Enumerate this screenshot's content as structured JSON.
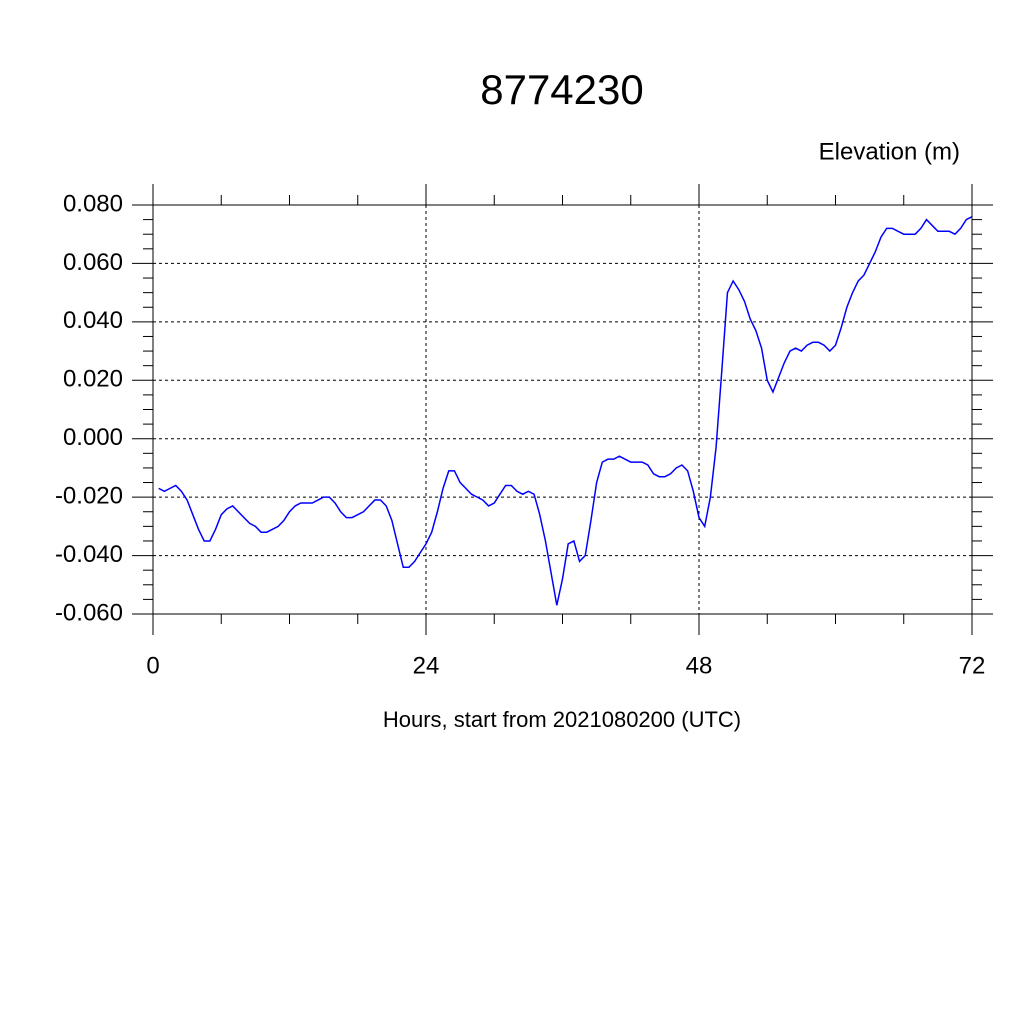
{
  "chart_data": {
    "type": "line",
    "title": "8774230",
    "ylabel": "Elevation (m)",
    "xlabel": "Hours, start from 2021080200 (UTC)",
    "color": "#0000ff",
    "grid": true,
    "xlim": [
      0,
      72
    ],
    "xticks": [
      0,
      24,
      48,
      72
    ],
    "ylim": [
      -0.06,
      0.08
    ],
    "yticks": [
      {
        "value": -0.06,
        "label": "-0.060"
      },
      {
        "value": -0.04,
        "label": "-0.040"
      },
      {
        "value": -0.02,
        "label": "-0.020"
      },
      {
        "value": 0,
        "label": "0.000"
      },
      {
        "value": 0.02,
        "label": "0.020"
      },
      {
        "value": 0.04,
        "label": "0.040"
      },
      {
        "value": 0.06,
        "label": "0.060"
      },
      {
        "value": 0.08,
        "label": "0.080"
      }
    ],
    "x": [
      0.5,
      1,
      1.5,
      2,
      2.5,
      3,
      3.5,
      4,
      4.5,
      5,
      5.5,
      6,
      6.5,
      7,
      7.5,
      8,
      8.5,
      9,
      9.5,
      10,
      10.5,
      11,
      11.5,
      12,
      12.5,
      13,
      13.5,
      14,
      14.5,
      15,
      15.5,
      16,
      16.5,
      17,
      17.5,
      18,
      18.5,
      19,
      19.5,
      20,
      20.5,
      21,
      21.5,
      22,
      22.5,
      23,
      23.5,
      24,
      24.5,
      25,
      25.5,
      26,
      26.5,
      27,
      27.5,
      28,
      28.5,
      29,
      29.5,
      30,
      30.5,
      31,
      31.5,
      32,
      32.5,
      33,
      33.5,
      34,
      34.5,
      35,
      35.5,
      36,
      36.5,
      37,
      37.5,
      38,
      38.5,
      39,
      39.5,
      40,
      40.5,
      41,
      41.5,
      42,
      42.5,
      43,
      43.5,
      44,
      44.5,
      45,
      45.5,
      46,
      46.5,
      47,
      47.5,
      48,
      48.5,
      49,
      49.5,
      50,
      50.5,
      51,
      51.5,
      52,
      52.5,
      53,
      53.5,
      54,
      54.5,
      55,
      55.5,
      56,
      56.5,
      57,
      57.5,
      58,
      58.5,
      59,
      59.5,
      60,
      60.5,
      61,
      61.5,
      62,
      62.5,
      63,
      63.5,
      64,
      64.5,
      65,
      65.5,
      66,
      66.5,
      67,
      67.5,
      68,
      68.5,
      69,
      69.5,
      70,
      70.5,
      71,
      71.5,
      72
    ],
    "values": [
      -0.017,
      -0.018,
      -0.017,
      -0.016,
      -0.018,
      -0.021,
      -0.026,
      -0.031,
      -0.035,
      -0.035,
      -0.031,
      -0.026,
      -0.024,
      -0.023,
      -0.025,
      -0.027,
      -0.029,
      -0.03,
      -0.032,
      -0.032,
      -0.031,
      -0.03,
      -0.028,
      -0.025,
      -0.023,
      -0.022,
      -0.022,
      -0.022,
      -0.021,
      -0.02,
      -0.02,
      -0.022,
      -0.025,
      -0.027,
      -0.027,
      -0.026,
      -0.025,
      -0.023,
      -0.021,
      -0.021,
      -0.023,
      -0.028,
      -0.036,
      -0.044,
      -0.044,
      -0.042,
      -0.039,
      -0.036,
      -0.032,
      -0.025,
      -0.017,
      -0.011,
      -0.011,
      -0.015,
      -0.017,
      -0.019,
      -0.02,
      -0.021,
      -0.023,
      -0.022,
      -0.019,
      -0.016,
      -0.016,
      -0.018,
      -0.019,
      -0.018,
      -0.019,
      -0.026,
      -0.035,
      -0.046,
      -0.057,
      -0.048,
      -0.036,
      -0.035,
      -0.042,
      -0.04,
      -0.028,
      -0.015,
      -0.008,
      -0.007,
      -0.007,
      -0.006,
      -0.007,
      -0.008,
      -0.008,
      -0.008,
      -0.009,
      -0.012,
      -0.013,
      -0.013,
      -0.012,
      -0.01,
      -0.009,
      -0.011,
      -0.018,
      -0.027,
      -0.03,
      -0.02,
      -0.003,
      0.023,
      0.05,
      0.054,
      0.051,
      0.047,
      0.041,
      0.037,
      0.031,
      0.02,
      0.016,
      0.021,
      0.026,
      0.03,
      0.031,
      0.03,
      0.032,
      0.033,
      0.033,
      0.032,
      0.03,
      0.032,
      0.038,
      0.045,
      0.05,
      0.054,
      0.056,
      0.06,
      0.064,
      0.069,
      0.072,
      0.072,
      0.071,
      0.07,
      0.07,
      0.07,
      0.072,
      0.075,
      0.073,
      0.071,
      0.071,
      0.071,
      0.07,
      0.072,
      0.075,
      0.076
    ]
  }
}
